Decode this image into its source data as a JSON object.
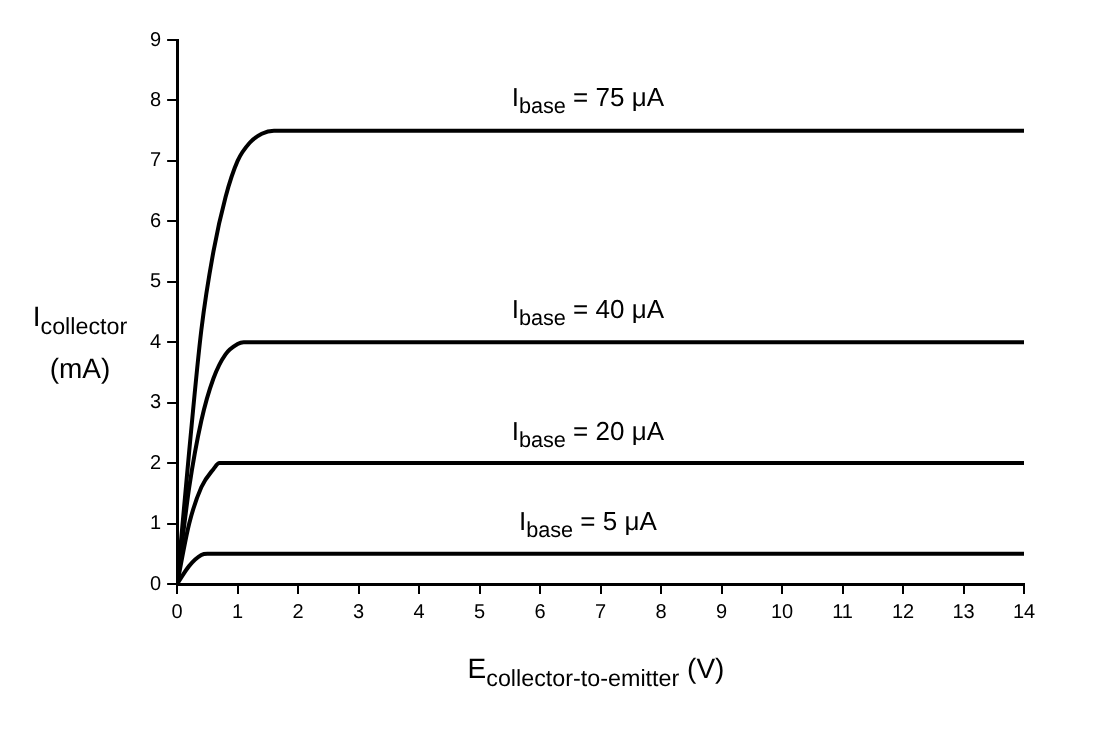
{
  "chart_data": {
    "type": "line",
    "xlabel": "E$_{collector-to-emitter}$ (V)",
    "ylabel": "I$_{collector}$ (mA)",
    "xlim": [
      0,
      14
    ],
    "xticks": [
      0,
      1,
      2,
      3,
      4,
      5,
      6,
      7,
      8,
      9,
      10,
      11,
      12,
      13,
      14
    ],
    "ylim": [
      0,
      9
    ],
    "yticks": [
      0,
      1,
      2,
      3,
      4,
      5,
      6,
      7,
      8,
      9
    ],
    "grid": false,
    "legend": false,
    "marker": "none",
    "line_style": "solid",
    "series": [
      {
        "color": "#000000",
        "x": [
          0,
          0.2,
          0.4,
          0.6,
          0.8,
          1.0,
          1.2,
          1.4,
          1.6,
          14
        ],
        "values": [
          0,
          2.2,
          4.2,
          5.5,
          6.4,
          7.0,
          7.3,
          7.45,
          7.5,
          7.5
        ]
      },
      {
        "color": "#000000",
        "x": [
          0,
          0.2,
          0.4,
          0.6,
          0.8,
          1.0,
          1.1,
          14
        ],
        "values": [
          0,
          1.6,
          2.7,
          3.4,
          3.8,
          3.97,
          4,
          4
        ]
      },
      {
        "color": "#000000",
        "x": [
          0,
          0.2,
          0.4,
          0.6,
          0.7,
          14
        ],
        "values": [
          0,
          1.0,
          1.6,
          1.9,
          2,
          2
        ]
      },
      {
        "color": "#000000",
        "x": [
          0,
          0.2,
          0.4,
          0.5,
          14
        ],
        "values": [
          0,
          0.3,
          0.48,
          0.5,
          0.5
        ]
      }
    ],
    "annotations": [
      {
        "text": "I$_{base}$ = 75 μA",
        "y": 7.5
      },
      {
        "text": "I$_{base}$ = 40 μA",
        "y": 4
      },
      {
        "text": "I$_{base}$ = 20 μA",
        "y": 2
      },
      {
        "text": "I$_{base}$ = 5 μA",
        "y": 0.5
      }
    ]
  }
}
